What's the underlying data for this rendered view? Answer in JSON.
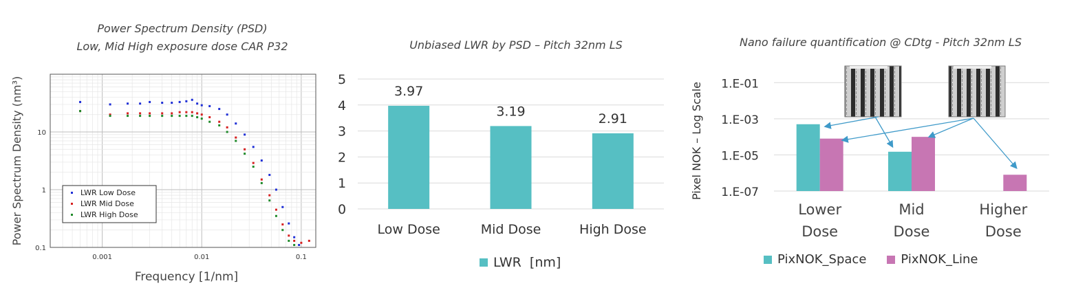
{
  "chart_data": [
    {
      "type": "scatter",
      "title": "Power Spectrum Density (PSD)",
      "subtitle": "Low, Mid High exposure dose CAR P32",
      "xlabel": "Frequency [1/nm]",
      "ylabel": "Power Spectrum Density (nm³)",
      "x_scale": "log",
      "y_scale": "log",
      "xlim": [
        0.0003,
        0.14
      ],
      "ylim": [
        0.1,
        100
      ],
      "x_ticks": [
        "0.001",
        "0.01",
        "0.1"
      ],
      "y_ticks": [
        "0.1",
        "1",
        "10"
      ],
      "grid": true,
      "legend_position": "bottom-left",
      "series": [
        {
          "name": "LWR Low Dose",
          "color": "#1f2fd6",
          "x": [
            0.0006,
            0.0012,
            0.0018,
            0.0024,
            0.003,
            0.004,
            0.005,
            0.006,
            0.007,
            0.008,
            0.009,
            0.01,
            0.012,
            0.015,
            0.018,
            0.022,
            0.027,
            0.033,
            0.04,
            0.048,
            0.056,
            0.065,
            0.075,
            0.085,
            0.095
          ],
          "y": [
            33,
            30,
            31,
            31,
            33,
            32,
            32,
            33,
            34,
            36,
            31,
            29,
            28,
            25,
            20,
            14,
            9,
            5.5,
            3.2,
            1.8,
            1.0,
            0.5,
            0.26,
            0.15,
            0.11
          ]
        },
        {
          "name": "LWR Mid Dose",
          "color": "#d62020",
          "x": [
            0.0006,
            0.0012,
            0.0018,
            0.0024,
            0.003,
            0.004,
            0.005,
            0.006,
            0.007,
            0.008,
            0.009,
            0.01,
            0.012,
            0.015,
            0.018,
            0.022,
            0.027,
            0.033,
            0.04,
            0.048,
            0.056,
            0.065,
            0.075,
            0.085,
            0.1,
            0.12
          ],
          "y": [
            23,
            20,
            21,
            21,
            21,
            21,
            21,
            22,
            22,
            22,
            21,
            20,
            18,
            15,
            12,
            8,
            5,
            2.9,
            1.5,
            0.8,
            0.45,
            0.25,
            0.16,
            0.13,
            0.12,
            0.13
          ]
        },
        {
          "name": "LWR High Dose",
          "color": "#1f8a2a",
          "x": [
            0.0006,
            0.0012,
            0.0018,
            0.0024,
            0.003,
            0.004,
            0.005,
            0.006,
            0.007,
            0.008,
            0.009,
            0.01,
            0.012,
            0.015,
            0.018,
            0.022,
            0.027,
            0.033,
            0.04,
            0.048,
            0.056,
            0.065,
            0.075,
            0.085
          ],
          "y": [
            23,
            19,
            19,
            19,
            19,
            19,
            19,
            19,
            19,
            19,
            18,
            17,
            15,
            13,
            10,
            7,
            4.2,
            2.5,
            1.3,
            0.65,
            0.35,
            0.2,
            0.13,
            0.11
          ]
        }
      ]
    },
    {
      "type": "bar",
      "title": "Unbiased LWR by PSD – Pitch 32nm LS",
      "categories": [
        "Low Dose",
        "Mid Dose",
        "High Dose"
      ],
      "series": [
        {
          "name": "LWR  [nm]",
          "color": "#56bfc3",
          "values": [
            3.97,
            3.19,
            2.91
          ]
        }
      ],
      "data_labels": [
        "3.97",
        "3.19",
        "2.91"
      ],
      "ylim": [
        0,
        5
      ],
      "y_ticks": [
        "0",
        "1",
        "2",
        "3",
        "4",
        "5"
      ],
      "grid": true,
      "legend_position": "bottom"
    },
    {
      "type": "bar",
      "title": "Nano failure quantification @ CDtg - Pitch 32nm LS",
      "ylabel": "Pixel NOK – Log Scale",
      "y_scale": "log",
      "ylim": [
        1e-07,
        1
      ],
      "y_ticks": [
        "1.E-01",
        "1.E-03",
        "1.E-05",
        "1.E-07"
      ],
      "categories": [
        "Lower Dose",
        "Mid Dose",
        "Higher Dose"
      ],
      "category_lines": [
        [
          "Lower",
          "Dose"
        ],
        [
          "Mid",
          "Dose"
        ],
        [
          "Higher",
          "Dose"
        ]
      ],
      "series": [
        {
          "name": "PixNOK_Space",
          "color": "#56bfc3",
          "values": [
            0.0005,
            1.5e-05,
            null
          ]
        },
        {
          "name": "PixNOK_Line",
          "color": "#c776b3",
          "values": [
            8e-05,
            0.0001,
            8e-07
          ]
        }
      ],
      "grid": true,
      "legend_position": "bottom"
    }
  ]
}
